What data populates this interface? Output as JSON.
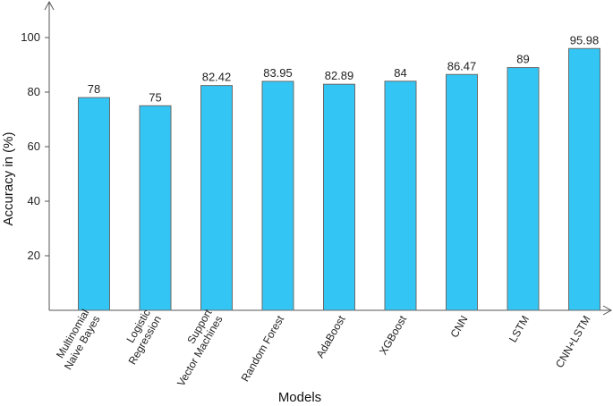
{
  "chart_data": {
    "type": "bar",
    "title": "",
    "xlabel": "Models",
    "ylabel": "Accuracy in (%)",
    "ylim": [
      0,
      118
    ],
    "yticks": [
      20,
      40,
      60,
      80,
      100
    ],
    "grid": false,
    "legend": "none",
    "bar_color": "#33c6f5",
    "bar_edge_color": "#6b6b6b",
    "categories": [
      [
        "Multinomial",
        "Naive Bayes"
      ],
      [
        "Logistic",
        "Regression"
      ],
      [
        "Support",
        "Vector Machines"
      ],
      [
        "Random Forest"
      ],
      [
        "AdaBoost"
      ],
      [
        "XGBoost"
      ],
      [
        "CNN"
      ],
      [
        "LSTM"
      ],
      [
        "CNN+LSTM"
      ]
    ],
    "values": [
      78,
      75,
      82.42,
      83.95,
      82.89,
      84,
      86.47,
      89,
      95.98
    ],
    "value_labels": [
      "78",
      "75",
      "82.42",
      "83.95",
      "82.89",
      "84",
      "86.47",
      "89",
      "95.98"
    ]
  }
}
